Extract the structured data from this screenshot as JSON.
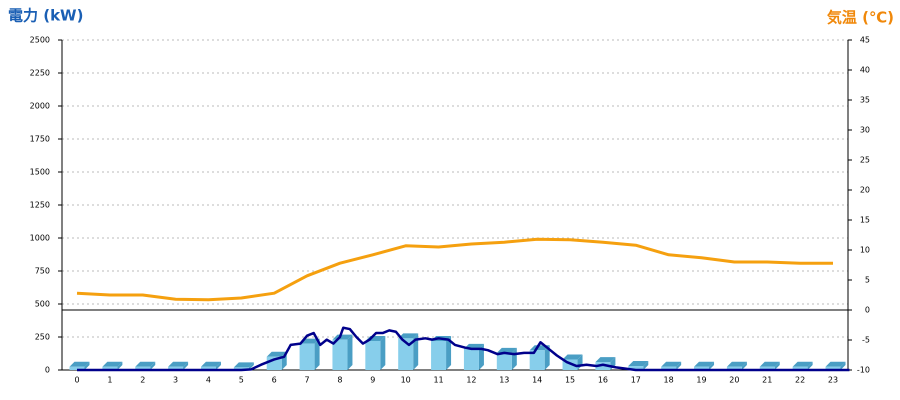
{
  "chart_data": {
    "type": "bar",
    "title_left": "電力 (kW)",
    "title_right": "気温 (℃)",
    "title_left_color": "#1a5fb4",
    "title_right_color": "#f0880a",
    "categories": [
      0,
      1,
      2,
      3,
      4,
      5,
      6,
      7,
      8,
      9,
      10,
      11,
      12,
      13,
      14,
      15,
      16,
      17,
      18,
      19,
      20,
      21,
      22,
      23
    ],
    "ylim": [
      0,
      2500
    ],
    "yticks": [
      0,
      250,
      500,
      750,
      1000,
      1250,
      1500,
      1750,
      2000,
      2250,
      2500
    ],
    "y2lim": [
      -10,
      45
    ],
    "y2ticks": [
      -10,
      -5,
      0,
      5,
      10,
      15,
      20,
      25,
      30,
      35,
      40,
      45
    ],
    "grid": true,
    "series": [
      {
        "type": "bar",
        "color": "#87ceeb",
        "side_color": "#4a9ec4",
        "values": [
          25,
          25,
          25,
          25,
          25,
          20,
          100,
          200,
          230,
          220,
          240,
          220,
          160,
          130,
          150,
          80,
          60,
          30,
          25,
          25,
          25,
          25,
          25,
          25
        ]
      },
      {
        "type": "line",
        "color": "#00008b",
        "x": [
          0,
          5,
          5.3,
          5.6,
          6,
          6.3,
          6.5,
          6.8,
          7,
          7.2,
          7.4,
          7.6,
          7.8,
          8,
          8.1,
          8.3,
          8.5,
          8.7,
          8.9,
          9.1,
          9.3,
          9.5,
          9.7,
          9.9,
          10.1,
          10.3,
          10.6,
          10.8,
          11,
          11.3,
          11.5,
          11.8,
          12,
          12.3,
          12.5,
          12.8,
          13,
          13.3,
          13.6,
          13.9,
          14.1,
          14.3,
          14.6,
          14.9,
          15.2,
          15.5,
          15.8,
          16,
          16.4,
          17,
          23.5
        ],
        "values": [
          0,
          0,
          5,
          40,
          80,
          100,
          190,
          200,
          260,
          280,
          190,
          230,
          200,
          250,
          320,
          310,
          250,
          200,
          230,
          280,
          280,
          300,
          290,
          230,
          190,
          230,
          240,
          230,
          240,
          230,
          190,
          170,
          160,
          160,
          150,
          120,
          130,
          120,
          130,
          130,
          210,
          170,
          110,
          60,
          30,
          40,
          30,
          40,
          20,
          0,
          0
        ]
      },
      {
        "type": "line",
        "axis": "y2",
        "color": "#f5a00f",
        "values": [
          2.8,
          2.5,
          2.5,
          1.8,
          1.7,
          2,
          2.8,
          5.7,
          7.8,
          9.2,
          10.7,
          10.5,
          11,
          11.3,
          11.8,
          11.7,
          11.3,
          10.8,
          9.2,
          8.7,
          8,
          8,
          7.8,
          7.8
        ]
      }
    ]
  }
}
